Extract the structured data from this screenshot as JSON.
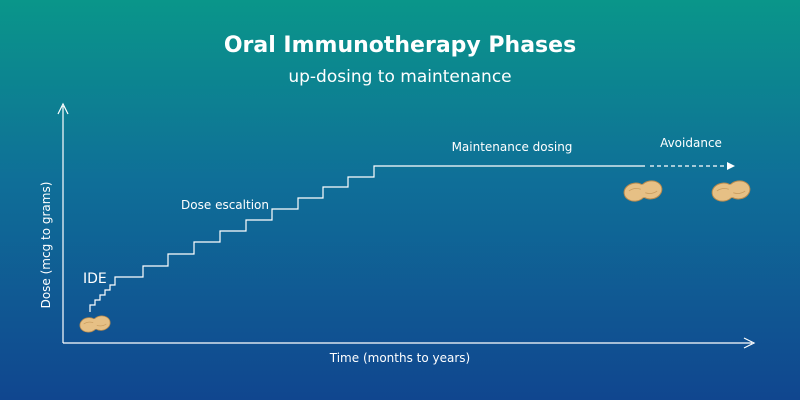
{
  "header": {
    "title": "Oral Immunotherapy Phases",
    "subtitle": "up-dosing to maintenance"
  },
  "axes": {
    "y_label": "Dose (mcg to grams)",
    "x_label": "Time (months to years)"
  },
  "annotations": {
    "ide": "IDE",
    "escalation": "Dose escaltion",
    "maintenance": "Maintenance dosing",
    "avoidance": "Avoidance"
  }
}
